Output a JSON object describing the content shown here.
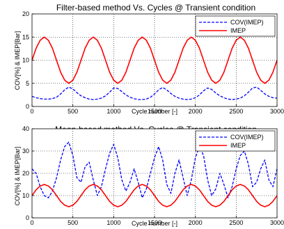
{
  "chart_data": [
    {
      "type": "line",
      "title": "Filter-based method Vs. Cycles @ Transient condition",
      "xlabel": "Cycle number [-]",
      "ylabel": "COV[%] & IMEP[Bar]",
      "xlim": [
        0,
        3000
      ],
      "ylim": [
        0,
        20
      ],
      "xticks": [
        0,
        500,
        1000,
        1500,
        2000,
        2500,
        3000
      ],
      "yticks": [
        0,
        5,
        10,
        15,
        20
      ],
      "grid": true,
      "legend_position": "top-right",
      "series": [
        {
          "name": "COV(IMEP)",
          "color": "#0000ff",
          "style": "dashed",
          "x": [
            0,
            50,
            100,
            150,
            200,
            250,
            300,
            350,
            400,
            450,
            500,
            550,
            600,
            650,
            700,
            750,
            800,
            850,
            900,
            950,
            1000,
            1050,
            1100,
            1150,
            1200,
            1250,
            1300,
            1350,
            1400,
            1450,
            1500,
            1550,
            1600,
            1650,
            1700,
            1750,
            1800,
            1850,
            1900,
            1950,
            2000,
            2050,
            2100,
            2150,
            2200,
            2250,
            2300,
            2350,
            2400,
            2450,
            2500,
            2550,
            2600,
            2650,
            2700,
            2750,
            2800,
            2850,
            2900,
            2950,
            3000
          ],
          "y": [
            2.2,
            1.9,
            1.7,
            1.6,
            1.6,
            1.7,
            2.0,
            2.7,
            3.6,
            4.2,
            3.8,
            3.0,
            2.3,
            1.9,
            1.6,
            1.5,
            1.6,
            1.8,
            2.3,
            3.1,
            4.0,
            3.9,
            3.2,
            2.5,
            2.0,
            1.7,
            1.5,
            1.5,
            1.6,
            2.0,
            2.7,
            3.6,
            4.1,
            3.6,
            2.8,
            2.2,
            1.8,
            1.6,
            1.5,
            1.6,
            1.9,
            2.5,
            3.4,
            4.0,
            3.7,
            2.9,
            2.3,
            1.9,
            1.6,
            1.5,
            1.6,
            1.8,
            2.3,
            3.1,
            4.0,
            4.2,
            3.5,
            2.7,
            2.2,
            1.9,
            1.8
          ]
        },
        {
          "name": "IMEP",
          "color": "#ff0000",
          "style": "solid",
          "x": [
            0,
            50,
            100,
            150,
            200,
            250,
            300,
            350,
            400,
            450,
            500,
            550,
            600,
            650,
            700,
            750,
            800,
            850,
            900,
            950,
            1000,
            1050,
            1100,
            1150,
            1200,
            1250,
            1300,
            1350,
            1400,
            1450,
            1500,
            1550,
            1600,
            1650,
            1700,
            1750,
            1800,
            1850,
            1900,
            1950,
            2000,
            2050,
            2100,
            2150,
            2200,
            2250,
            2300,
            2350,
            2400,
            2450,
            2500,
            2550,
            2600,
            2650,
            2700,
            2750,
            2800,
            2850,
            2900,
            2950,
            3000
          ],
          "y": [
            10.0,
            12.6,
            14.3,
            15.0,
            14.3,
            12.6,
            10.0,
            7.4,
            5.7,
            5.0,
            5.7,
            7.4,
            10.0,
            12.6,
            14.3,
            15.0,
            14.3,
            12.6,
            10.0,
            7.4,
            5.7,
            5.0,
            5.7,
            7.4,
            10.0,
            12.6,
            14.3,
            15.0,
            14.3,
            12.6,
            10.0,
            7.4,
            5.7,
            5.0,
            5.7,
            7.4,
            10.0,
            12.6,
            14.3,
            15.0,
            14.3,
            12.6,
            10.0,
            7.4,
            5.7,
            5.0,
            5.7,
            7.4,
            10.0,
            12.6,
            14.3,
            15.0,
            14.3,
            12.6,
            10.0,
            7.4,
            5.7,
            5.0,
            5.7,
            7.4,
            10.0
          ]
        }
      ]
    },
    {
      "type": "line",
      "title": "Mean-based method Vs. Cycles @ Transient condition",
      "xlabel": "Cycle number [-]",
      "ylabel": "COV[%] & IMEP[Bar]",
      "xlim": [
        0,
        3000
      ],
      "ylim": [
        0,
        40
      ],
      "xticks": [
        0,
        500,
        1000,
        1500,
        2000,
        2500,
        3000
      ],
      "yticks": [
        0,
        10,
        20,
        30,
        40
      ],
      "grid": true,
      "legend_position": "top-right",
      "series": [
        {
          "name": "COV(IMEP)",
          "color": "#0000ff",
          "style": "dashed",
          "x": [
            0,
            50,
            100,
            150,
            200,
            250,
            300,
            350,
            400,
            450,
            500,
            550,
            600,
            650,
            700,
            750,
            800,
            850,
            900,
            950,
            1000,
            1050,
            1100,
            1150,
            1200,
            1250,
            1300,
            1350,
            1400,
            1450,
            1500,
            1550,
            1600,
            1650,
            1700,
            1750,
            1800,
            1850,
            1900,
            1950,
            2000,
            2050,
            2100,
            2150,
            2200,
            2250,
            2300,
            2350,
            2400,
            2450,
            2500,
            2550,
            2600,
            2650,
            2700,
            2750,
            2800,
            2850,
            2900,
            2950,
            3000
          ],
          "y": [
            22,
            20,
            14,
            10,
            9,
            12,
            18,
            26,
            32,
            34,
            28,
            18,
            16,
            23,
            25,
            17,
            10,
            14,
            22,
            29,
            33,
            27,
            17,
            12,
            16,
            22,
            16,
            9,
            13,
            20,
            27,
            32,
            26,
            15,
            11,
            20,
            26,
            18,
            10,
            17,
            27,
            32,
            28,
            17,
            10,
            13,
            20,
            15,
            9,
            14,
            22,
            28,
            30,
            24,
            14,
            16,
            22,
            26,
            17,
            14,
            22
          ]
        },
        {
          "name": "IMEP",
          "color": "#ff0000",
          "style": "solid",
          "x": [
            0,
            50,
            100,
            150,
            200,
            250,
            300,
            350,
            400,
            450,
            500,
            550,
            600,
            650,
            700,
            750,
            800,
            850,
            900,
            950,
            1000,
            1050,
            1100,
            1150,
            1200,
            1250,
            1300,
            1350,
            1400,
            1450,
            1500,
            1550,
            1600,
            1650,
            1700,
            1750,
            1800,
            1850,
            1900,
            1950,
            2000,
            2050,
            2100,
            2150,
            2200,
            2250,
            2300,
            2350,
            2400,
            2450,
            2500,
            2550,
            2600,
            2650,
            2700,
            2750,
            2800,
            2850,
            2900,
            2950,
            3000
          ],
          "y": [
            10.0,
            12.6,
            14.3,
            15.0,
            14.3,
            12.6,
            10.0,
            7.4,
            5.7,
            5.0,
            5.7,
            7.4,
            10.0,
            12.6,
            14.3,
            15.0,
            14.3,
            12.6,
            10.0,
            7.4,
            5.7,
            5.0,
            5.7,
            7.4,
            10.0,
            12.6,
            14.3,
            15.0,
            14.3,
            12.6,
            10.0,
            7.4,
            5.7,
            5.0,
            5.7,
            7.4,
            10.0,
            12.6,
            14.3,
            15.0,
            14.3,
            12.6,
            10.0,
            7.4,
            5.7,
            5.0,
            5.7,
            7.4,
            10.0,
            12.6,
            14.3,
            15.0,
            14.3,
            12.6,
            10.0,
            7.4,
            5.7,
            5.0,
            5.7,
            7.4,
            10.0
          ]
        }
      ]
    }
  ]
}
